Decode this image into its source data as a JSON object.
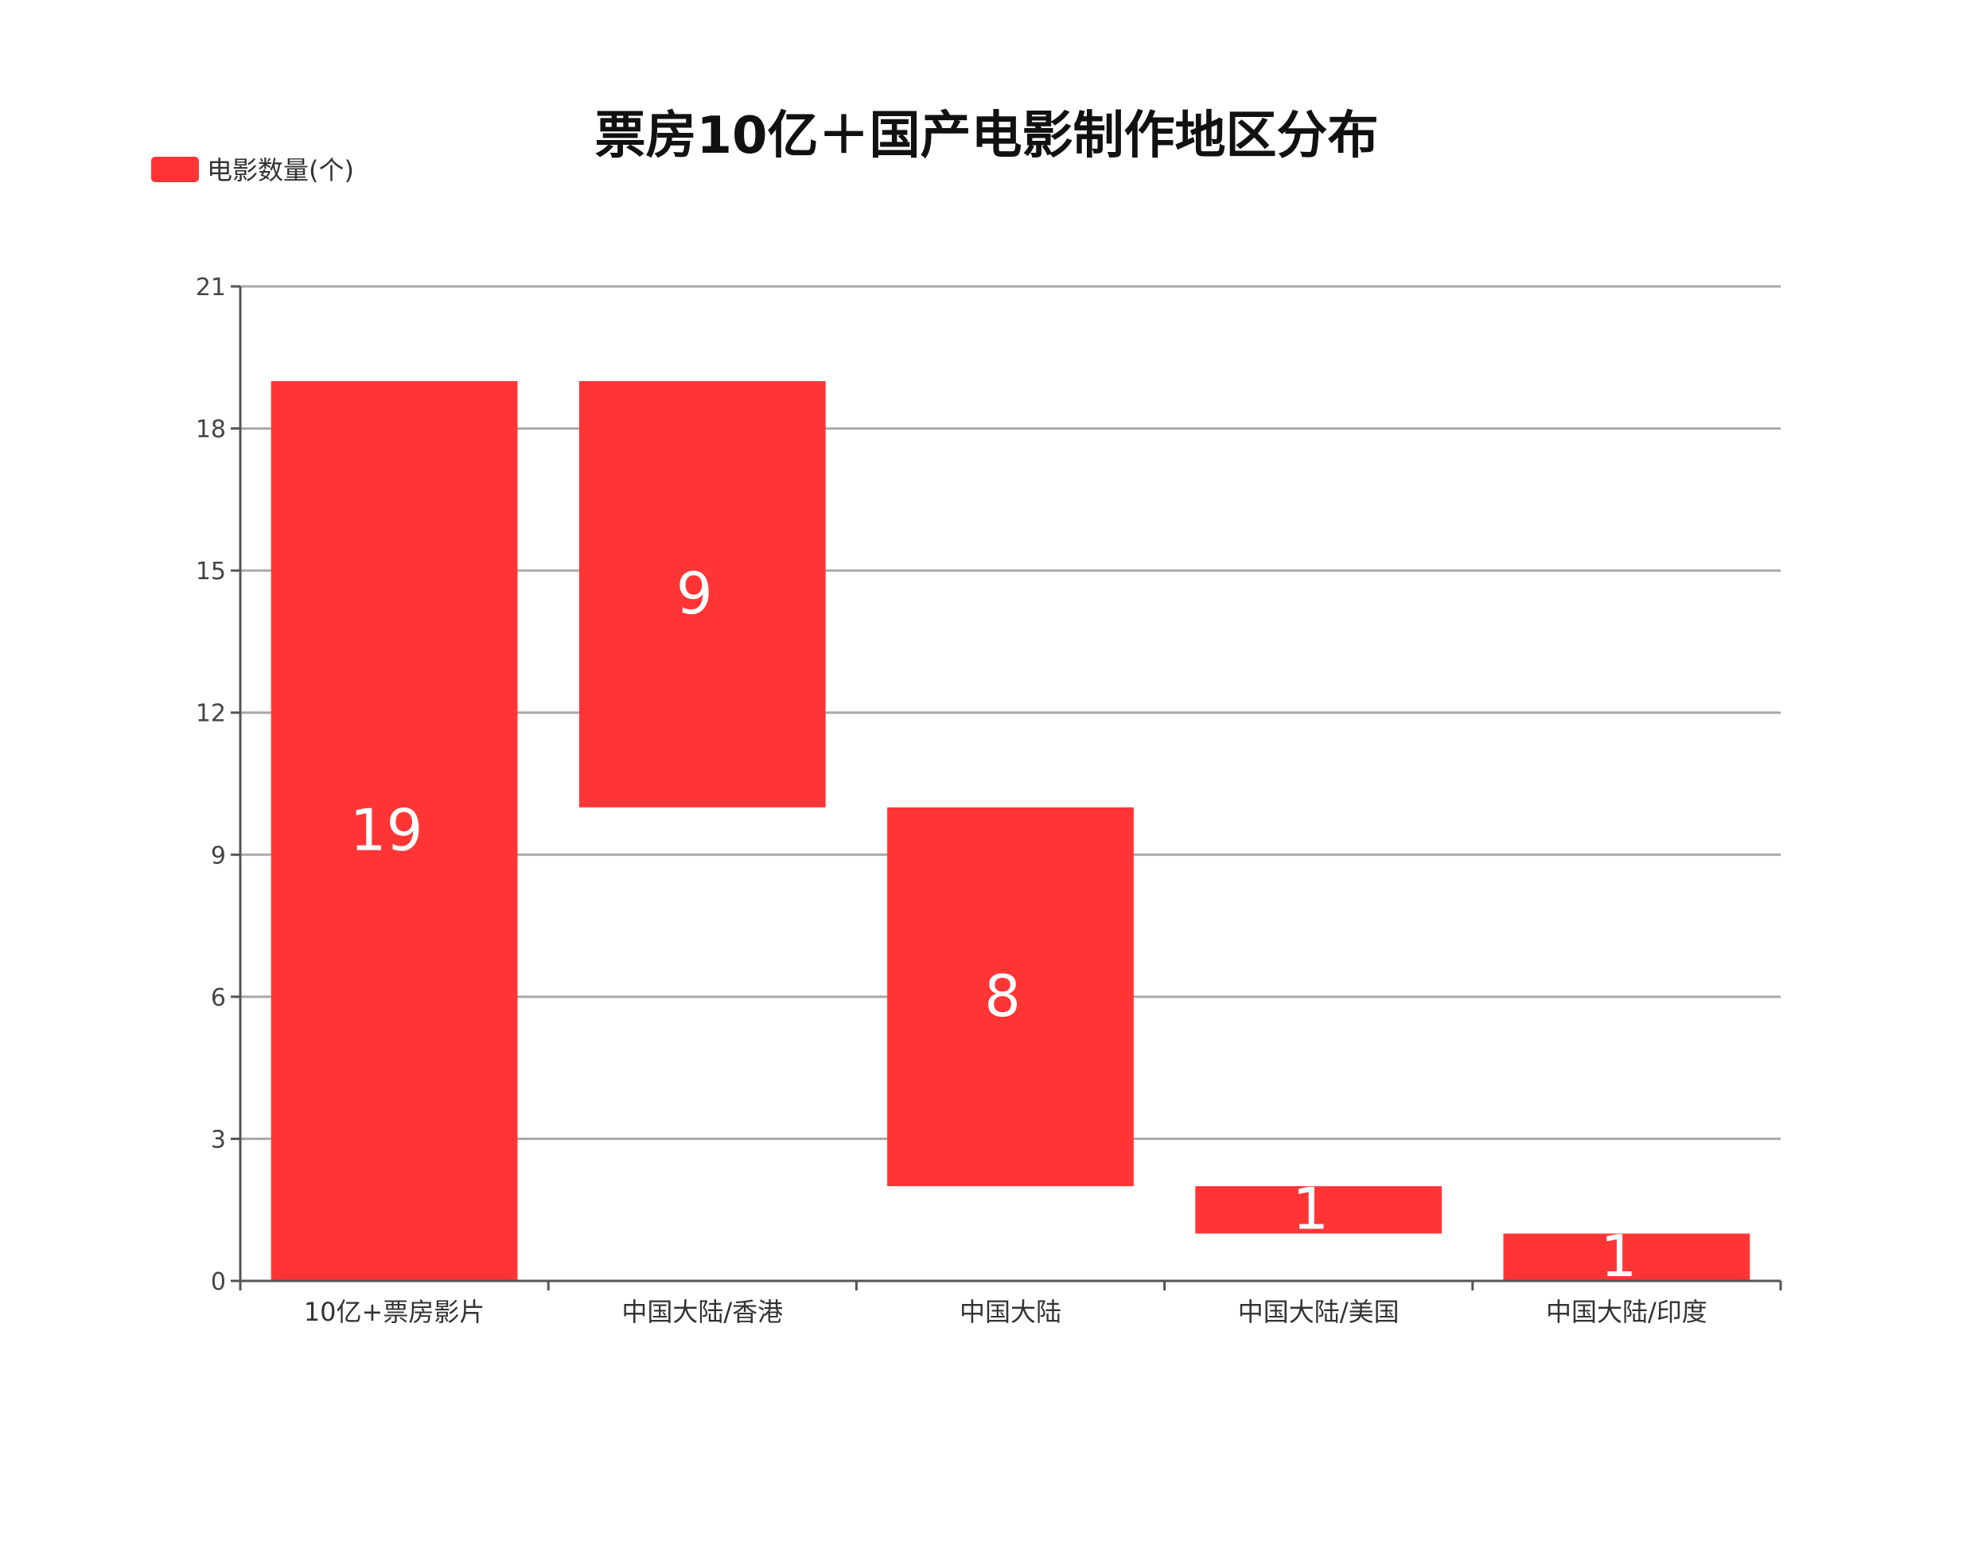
{
  "chart_data": {
    "type": "bar",
    "subtype": "waterfall",
    "title": "票房10亿＋国产电影制作地区分布",
    "legend": {
      "label": "电影数量(个)",
      "color": "#ff3535",
      "position": "top-left"
    },
    "categories": [
      "10亿+票房影片",
      "中国大陆/香港",
      "中国大陆",
      "中国大陆/美国",
      "中国大陆/印度"
    ],
    "values": [
      19,
      9,
      8,
      1,
      1
    ],
    "bases": [
      0,
      10,
      2,
      1,
      0
    ],
    "ylim": [
      0,
      21
    ],
    "yticks": [
      0,
      3,
      6,
      9,
      12,
      15,
      18,
      21
    ],
    "grid": true,
    "bar_color": "#ff3535",
    "xlabel": "",
    "ylabel": ""
  }
}
